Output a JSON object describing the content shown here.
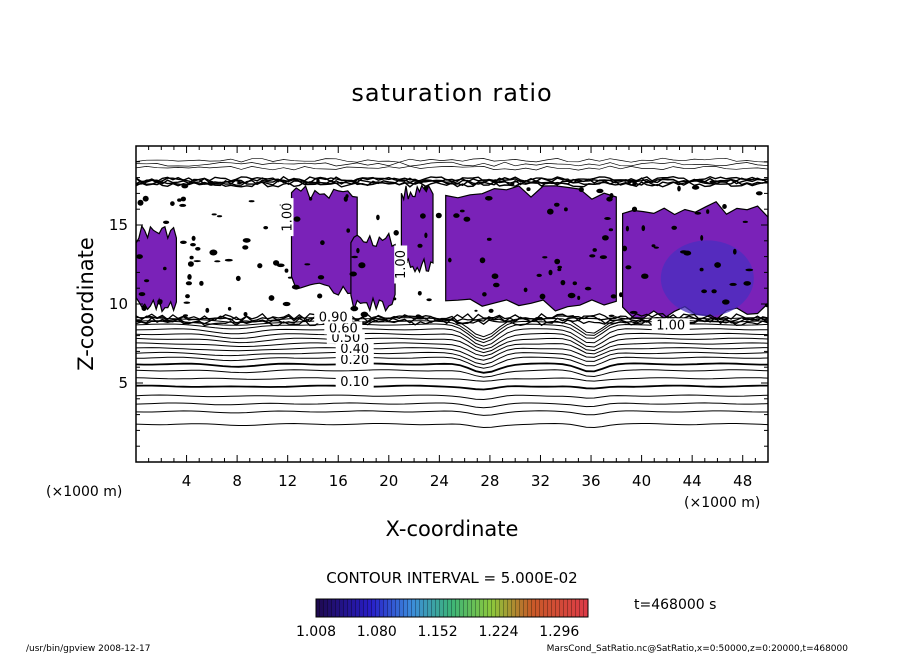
{
  "chart_data": {
    "type": "heatmap",
    "title": "saturation ratio",
    "xlabel": "X-coordinate",
    "ylabel": "Z-coordinate",
    "x_unit_left": "(×1000 m)",
    "x_unit_right": "(×1000 m)",
    "xlim": [
      0,
      50
    ],
    "ylim": [
      0,
      20
    ],
    "x_ticks": [
      4,
      8,
      12,
      16,
      20,
      24,
      28,
      32,
      36,
      40,
      44,
      48
    ],
    "y_ticks": [
      5,
      10,
      15
    ],
    "contour_interval_text": "CONTOUR INTERVAL = 5.000E-02",
    "time_text": "t=468000 s",
    "colorbar_ticks": [
      "1.008",
      "1.080",
      "1.152",
      "1.224",
      "1.296"
    ],
    "colorbar_range": [
      1.008,
      1.33
    ],
    "contour_labels": [
      {
        "text": "0.10",
        "x": 17.3,
        "z": 4.8
      },
      {
        "text": "0.20",
        "x": 17.3,
        "z": 6.2
      },
      {
        "text": "0.40",
        "x": 17.3,
        "z": 6.9
      },
      {
        "text": "0.50",
        "x": 16.6,
        "z": 7.6
      },
      {
        "text": "0.60",
        "x": 16.4,
        "z": 8.2
      },
      {
        "text": "0.90",
        "x": 15.6,
        "z": 8.9
      },
      {
        "text": "1.00",
        "x": 12.3,
        "z": 15.5
      },
      {
        "text": "1.00",
        "x": 21.3,
        "z": 12.5
      },
      {
        "text": "1.00",
        "x": 42.3,
        "z": 8.4
      }
    ],
    "contour_levels_z": [
      2.4,
      3.2,
      3.7,
      4.2,
      4.8,
      5.3,
      5.8,
      6.2,
      6.6,
      6.9,
      7.2,
      7.5,
      7.8,
      8.1,
      8.4,
      8.7,
      8.9,
      9.1
    ],
    "supersaturated_regions": [
      {
        "x": [
          0,
          3.2
        ],
        "z": [
          9.5,
          15
        ],
        "max_ratio": 1.03
      },
      {
        "x": [
          12.3,
          17.5
        ],
        "z": [
          10.5,
          17.5
        ],
        "max_ratio": 1.04
      },
      {
        "x": [
          17,
          20.5
        ],
        "z": [
          9.5,
          14.5
        ],
        "max_ratio": 1.03
      },
      {
        "x": [
          21,
          23.5
        ],
        "z": [
          12,
          17.5
        ],
        "max_ratio": 1.03
      },
      {
        "x": [
          24.5,
          38
        ],
        "z": [
          9.5,
          17.5
        ],
        "max_ratio": 1.05
      },
      {
        "x": [
          38.5,
          50
        ],
        "z": [
          9,
          16.5
        ],
        "max_ratio": 1.1
      }
    ]
  },
  "footer": {
    "left": "/usr/bin/gpview   2008-12-17",
    "right": "MarsCond_SatRatio.nc@SatRatio,x=0:50000,z=0:20000,t=468000"
  }
}
